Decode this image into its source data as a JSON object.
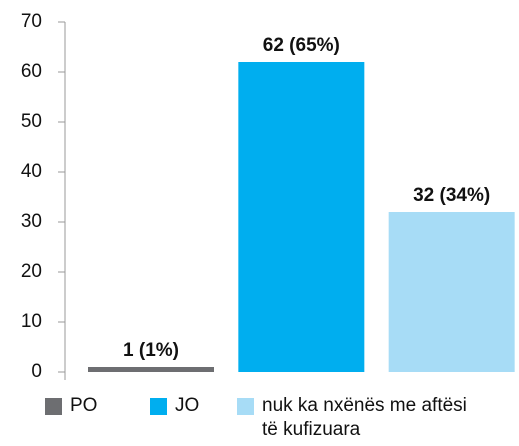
{
  "chart_data": {
    "type": "bar",
    "categories": [
      null,
      null,
      null
    ],
    "values": [
      1,
      62,
      32
    ],
    "value_labels": [
      "1 (1%)",
      "62 (65%)",
      "32 (34%)"
    ],
    "colors": [
      "#6d6e71",
      "#00aeef",
      "#a7dcf6"
    ],
    "legend": [
      "PO",
      "JO",
      "nuk ka nxënës me aftësi të kufizuara"
    ],
    "ylim": [
      0,
      70
    ],
    "yticks": [
      0,
      10,
      20,
      30,
      40,
      50,
      60,
      70
    ]
  }
}
